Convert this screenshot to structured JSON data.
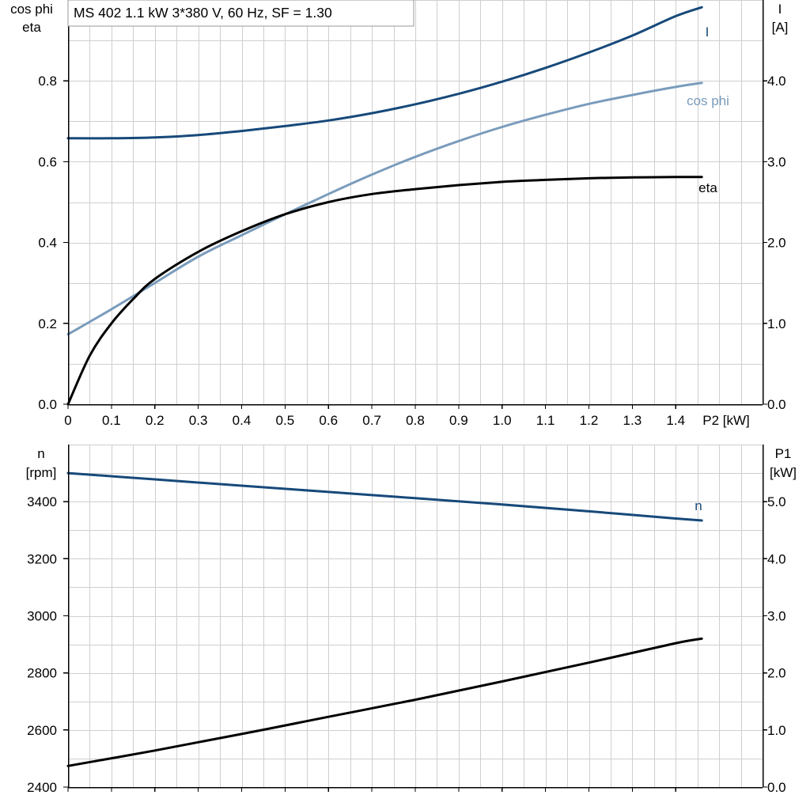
{
  "header": {
    "title": "MS 402   1.1 kW   3*380 V, 60 Hz, SF = 1.30"
  },
  "colors": {
    "I": "#17497a",
    "cos_phi": "#7a9cbc",
    "eta": "#000000",
    "n": "#17497a",
    "P1": "#000000",
    "grid": "#cfcfcf"
  },
  "chart_data": [
    {
      "type": "line",
      "title": "MS 402   1.1 kW   3*380 V, 60 Hz, SF = 1.30",
      "xlabel": "P2 [kW]",
      "xlim": [
        0,
        1.6
      ],
      "x_ticks": [
        "0",
        "0.1",
        "0.2",
        "0.3",
        "0.4",
        "0.5",
        "0.6",
        "0.7",
        "0.8",
        "0.9",
        "1.0",
        "1.1",
        "1.2",
        "1.3",
        "1.4"
      ],
      "y_left_label_lines": [
        "cos phi",
        "eta"
      ],
      "y_left_lim": [
        0,
        1.0
      ],
      "y_left_ticks": [
        "0.0",
        "0.2",
        "0.4",
        "0.6",
        "0.8"
      ],
      "y_right_label_lines": [
        "I",
        "[A]"
      ],
      "y_right_lim": [
        0,
        5.0
      ],
      "y_right_ticks": [
        "0.0",
        "1.0",
        "2.0",
        "3.0",
        "4.0"
      ],
      "grid": true,
      "series": [
        {
          "name": "I",
          "axis": "right",
          "x": [
            0,
            0.1,
            0.2,
            0.3,
            0.4,
            0.5,
            0.6,
            0.7,
            0.8,
            0.9,
            1.0,
            1.1,
            1.2,
            1.3,
            1.4,
            1.46
          ],
          "y": [
            3.29,
            3.29,
            3.3,
            3.33,
            3.38,
            3.44,
            3.51,
            3.6,
            3.71,
            3.84,
            3.99,
            4.16,
            4.35,
            4.56,
            4.8,
            4.91
          ]
        },
        {
          "name": "cos phi",
          "axis": "left",
          "x": [
            0,
            0.1,
            0.2,
            0.3,
            0.4,
            0.5,
            0.6,
            0.7,
            0.8,
            0.9,
            1.0,
            1.1,
            1.2,
            1.3,
            1.4,
            1.46
          ],
          "y": [
            0.173,
            0.235,
            0.3,
            0.365,
            0.418,
            0.47,
            0.52,
            0.568,
            0.612,
            0.651,
            0.686,
            0.716,
            0.743,
            0.765,
            0.785,
            0.795
          ]
        },
        {
          "name": "eta",
          "axis": "left",
          "x": [
            0,
            0.05,
            0.1,
            0.15,
            0.2,
            0.3,
            0.4,
            0.5,
            0.6,
            0.7,
            0.8,
            0.9,
            1.0,
            1.1,
            1.2,
            1.3,
            1.4,
            1.46
          ],
          "y": [
            0.0,
            0.12,
            0.2,
            0.26,
            0.31,
            0.377,
            0.428,
            0.47,
            0.5,
            0.52,
            0.532,
            0.542,
            0.55,
            0.555,
            0.559,
            0.561,
            0.562,
            0.562
          ]
        }
      ]
    },
    {
      "type": "line",
      "xlim": [
        0,
        1.6
      ],
      "y_left_label_lines": [
        "n",
        "[rpm]"
      ],
      "y_left_lim": [
        2400,
        3600
      ],
      "y_left_ticks": [
        "2400",
        "2600",
        "2800",
        "3000",
        "3200",
        "3400"
      ],
      "y_right_label_lines": [
        "P1",
        "[kW]"
      ],
      "y_right_lim": [
        0,
        6.0
      ],
      "y_right_ticks": [
        "0.0",
        "1.0",
        "2.0",
        "3.0",
        "4.0",
        "5.0"
      ],
      "grid": true,
      "series": [
        {
          "name": "n",
          "axis": "left",
          "x": [
            0,
            0.2,
            0.4,
            0.6,
            0.8,
            1.0,
            1.2,
            1.4,
            1.46
          ],
          "y": [
            3500,
            3478,
            3456,
            3434,
            3412,
            3390,
            3366,
            3341,
            3334
          ]
        },
        {
          "axis": "right",
          "x": [
            0,
            0.2,
            0.4,
            0.6,
            0.8,
            1.0,
            1.2,
            1.4,
            1.46
          ],
          "y": [
            0.37,
            0.64,
            0.93,
            1.23,
            1.53,
            1.85,
            2.18,
            2.52,
            2.6
          ]
        }
      ]
    }
  ]
}
